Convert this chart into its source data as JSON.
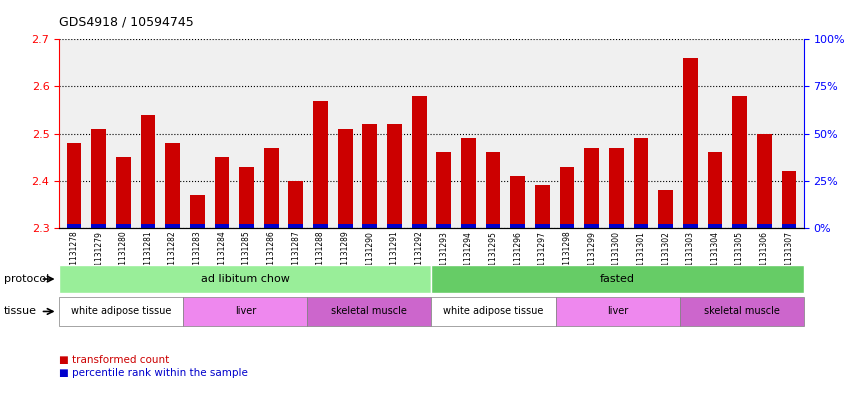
{
  "title": "GDS4918 / 10594745",
  "samples": [
    "GSM1131278",
    "GSM1131279",
    "GSM1131280",
    "GSM1131281",
    "GSM1131282",
    "GSM1131283",
    "GSM1131284",
    "GSM1131285",
    "GSM1131286",
    "GSM1131287",
    "GSM1131288",
    "GSM1131289",
    "GSM1131290",
    "GSM1131291",
    "GSM1131292",
    "GSM1131293",
    "GSM1131294",
    "GSM1131295",
    "GSM1131296",
    "GSM1131297",
    "GSM1131298",
    "GSM1131299",
    "GSM1131300",
    "GSM1131301",
    "GSM1131302",
    "GSM1131303",
    "GSM1131304",
    "GSM1131305",
    "GSM1131306",
    "GSM1131307"
  ],
  "bar_values": [
    2.48,
    2.51,
    2.45,
    2.54,
    2.48,
    2.37,
    2.45,
    2.43,
    2.47,
    2.4,
    2.57,
    2.51,
    2.52,
    2.52,
    2.58,
    2.46,
    2.49,
    2.46,
    2.41,
    2.39,
    2.43,
    2.47,
    2.47,
    2.49,
    2.38,
    2.66,
    2.46,
    2.58,
    2.5,
    2.42
  ],
  "percentile_values": [
    2,
    5,
    2,
    5,
    4,
    2,
    3,
    2,
    3,
    1,
    5,
    4,
    4,
    5,
    6,
    3,
    4,
    3,
    2,
    1,
    2,
    3,
    3,
    4,
    2,
    8,
    3,
    7,
    5,
    2
  ],
  "ymin": 2.3,
  "ymax": 2.7,
  "yticks": [
    2.3,
    2.4,
    2.5,
    2.6,
    2.7
  ],
  "right_yticks": [
    0,
    25,
    50,
    75,
    100
  ],
  "bar_color": "#cc0000",
  "percentile_color": "#0000cc",
  "background_color": "#f0f0f0",
  "grid_color": "#000000",
  "protocol_groups": [
    {
      "label": "ad libitum chow",
      "start": 0,
      "end": 14,
      "color": "#99ee99"
    },
    {
      "label": "fasted",
      "start": 15,
      "end": 29,
      "color": "#66cc66"
    }
  ],
  "tissue_groups": [
    {
      "label": "white adipose tissue",
      "start": 0,
      "end": 4,
      "color": "#ffffff"
    },
    {
      "label": "liver",
      "start": 5,
      "end": 9,
      "color": "#ee88ee"
    },
    {
      "label": "skeletal muscle",
      "start": 10,
      "end": 14,
      "color": "#cc66cc"
    },
    {
      "label": "white adipose tissue",
      "start": 15,
      "end": 19,
      "color": "#ffffff"
    },
    {
      "label": "liver",
      "start": 20,
      "end": 24,
      "color": "#ee88ee"
    },
    {
      "label": "skeletal muscle",
      "start": 25,
      "end": 29,
      "color": "#cc66cc"
    }
  ],
  "legend_items": [
    {
      "label": "transformed count",
      "color": "#cc0000"
    },
    {
      "label": "percentile rank within the sample",
      "color": "#0000cc"
    }
  ]
}
